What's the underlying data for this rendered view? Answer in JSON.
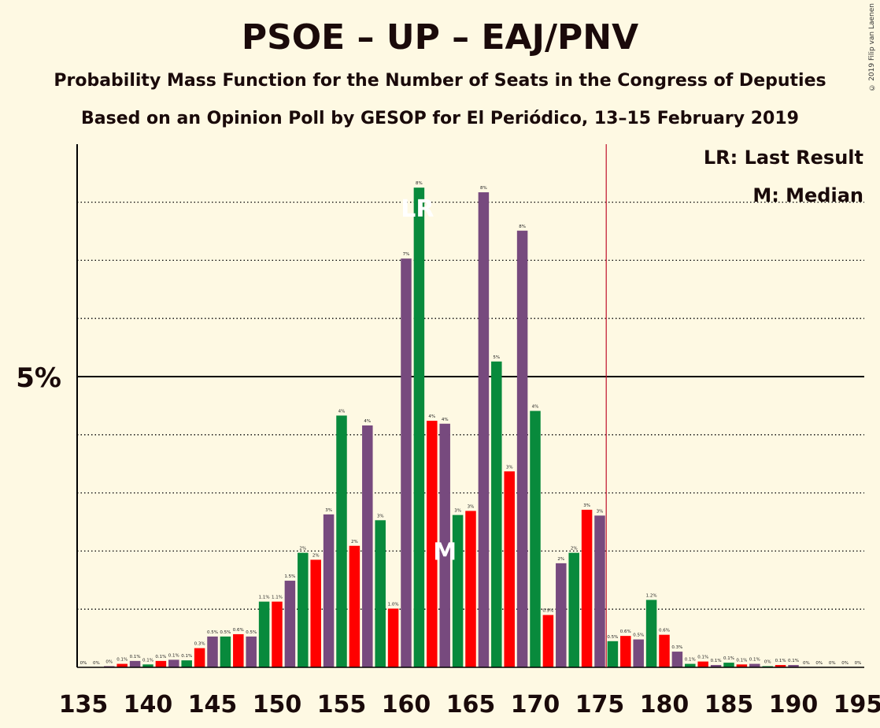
{
  "title": "PSOE – UP – EAJ/PNV",
  "subtitle": "Probability Mass Function for the Number of Seats in the Congress of Deputies",
  "subtitle2": "Based on an Opinion Poll by GESOP for El Periódico, 13–15 February 2019",
  "copyright": "© 2019 Filip van Laenen",
  "chart_data": {
    "type": "bar",
    "y_tick_label": "5%",
    "y_tick_value": 5,
    "ylim": [
      0,
      9
    ],
    "x_ticks": [
      135,
      140,
      145,
      150,
      155,
      160,
      165,
      170,
      175,
      180,
      185,
      190,
      195
    ],
    "majority_line": 176,
    "last_result": 161,
    "median": 163,
    "legend": {
      "lr": "LR: Last Result",
      "m": "M: Median"
    },
    "marker_labels": {
      "lr": "LR",
      "m": "M"
    },
    "colors": {
      "purple": "#774A7E",
      "green": "#088A3C",
      "red": "#FF0000",
      "majority_line": "#C0102A"
    },
    "bars": [
      {
        "seat": 135,
        "value": 0.0,
        "label": "0%",
        "color": "purple"
      },
      {
        "seat": 136,
        "value": 0.0,
        "label": "0%",
        "color": "green"
      },
      {
        "seat": 137,
        "value": 0.02,
        "label": "0%",
        "color": "purple"
      },
      {
        "seat": 138,
        "value": 0.06,
        "label": "0.1%",
        "color": "red"
      },
      {
        "seat": 139,
        "value": 0.11,
        "label": "0.1%",
        "color": "purple"
      },
      {
        "seat": 140,
        "value": 0.05,
        "label": "0.1%",
        "color": "green"
      },
      {
        "seat": 141,
        "value": 0.11,
        "label": "0.1%",
        "color": "red"
      },
      {
        "seat": 142,
        "value": 0.13,
        "label": "0.1%",
        "color": "purple"
      },
      {
        "seat": 143,
        "value": 0.12,
        "label": "0.1%",
        "color": "green"
      },
      {
        "seat": 144,
        "value": 0.33,
        "label": "0.3%",
        "color": "red"
      },
      {
        "seat": 145,
        "value": 0.53,
        "label": "0.5%",
        "color": "purple"
      },
      {
        "seat": 146,
        "value": 0.53,
        "label": "0.5%",
        "color": "green"
      },
      {
        "seat": 147,
        "value": 0.57,
        "label": "0.6%",
        "color": "red"
      },
      {
        "seat": 148,
        "value": 0.53,
        "label": "0.5%",
        "color": "purple"
      },
      {
        "seat": 149,
        "value": 1.13,
        "label": "1.1%",
        "color": "green"
      },
      {
        "seat": 150,
        "value": 1.13,
        "label": "1.1%",
        "color": "red"
      },
      {
        "seat": 151,
        "value": 1.49,
        "label": "1.5%",
        "color": "purple"
      },
      {
        "seat": 152,
        "value": 1.97,
        "label": "2%",
        "color": "green"
      },
      {
        "seat": 153,
        "value": 1.85,
        "label": "2%",
        "color": "red"
      },
      {
        "seat": 154,
        "value": 2.63,
        "label": "3%",
        "color": "purple"
      },
      {
        "seat": 155,
        "value": 4.33,
        "label": "4%",
        "color": "green"
      },
      {
        "seat": 156,
        "value": 2.09,
        "label": "2%",
        "color": "red"
      },
      {
        "seat": 157,
        "value": 4.16,
        "label": "4%",
        "color": "purple"
      },
      {
        "seat": 158,
        "value": 2.53,
        "label": "3%",
        "color": "green"
      },
      {
        "seat": 159,
        "value": 1.01,
        "label": "1.0%",
        "color": "red"
      },
      {
        "seat": 160,
        "value": 7.03,
        "label": "7%",
        "color": "purple"
      },
      {
        "seat": 161,
        "value": 8.25,
        "label": "8%",
        "color": "green"
      },
      {
        "seat": 162,
        "value": 4.24,
        "label": "4%",
        "color": "red"
      },
      {
        "seat": 163,
        "value": 4.19,
        "label": "4%",
        "color": "purple"
      },
      {
        "seat": 164,
        "value": 2.62,
        "label": "3%",
        "color": "green"
      },
      {
        "seat": 165,
        "value": 2.69,
        "label": "3%",
        "color": "red"
      },
      {
        "seat": 166,
        "value": 8.17,
        "label": "8%",
        "color": "purple"
      },
      {
        "seat": 167,
        "value": 5.26,
        "label": "5%",
        "color": "green"
      },
      {
        "seat": 168,
        "value": 3.37,
        "label": "3%",
        "color": "red"
      },
      {
        "seat": 169,
        "value": 7.51,
        "label": "8%",
        "color": "purple"
      },
      {
        "seat": 170,
        "value": 4.41,
        "label": "4%",
        "color": "green"
      },
      {
        "seat": 171,
        "value": 0.9,
        "label": "0.9%",
        "color": "red"
      },
      {
        "seat": 172,
        "value": 1.79,
        "label": "2%",
        "color": "purple"
      },
      {
        "seat": 173,
        "value": 1.97,
        "label": "2%",
        "color": "green"
      },
      {
        "seat": 174,
        "value": 2.71,
        "label": "3%",
        "color": "red"
      },
      {
        "seat": 175,
        "value": 2.61,
        "label": "3%",
        "color": "purple"
      },
      {
        "seat": 176,
        "value": 0.45,
        "label": "0.5%",
        "color": "green"
      },
      {
        "seat": 177,
        "value": 0.54,
        "label": "0.6%",
        "color": "red"
      },
      {
        "seat": 178,
        "value": 0.48,
        "label": "0.5%",
        "color": "purple"
      },
      {
        "seat": 179,
        "value": 1.16,
        "label": "1.2%",
        "color": "green"
      },
      {
        "seat": 180,
        "value": 0.56,
        "label": "0.6%",
        "color": "red"
      },
      {
        "seat": 181,
        "value": 0.27,
        "label": "0.3%",
        "color": "purple"
      },
      {
        "seat": 182,
        "value": 0.06,
        "label": "0.1%",
        "color": "green"
      },
      {
        "seat": 183,
        "value": 0.1,
        "label": "0.1%",
        "color": "red"
      },
      {
        "seat": 184,
        "value": 0.04,
        "label": "0.1%",
        "color": "purple"
      },
      {
        "seat": 185,
        "value": 0.08,
        "label": "0.1%",
        "color": "green"
      },
      {
        "seat": 186,
        "value": 0.05,
        "label": "0.1%",
        "color": "red"
      },
      {
        "seat": 187,
        "value": 0.06,
        "label": "0.1%",
        "color": "purple"
      },
      {
        "seat": 188,
        "value": 0.02,
        "label": "0%",
        "color": "green"
      },
      {
        "seat": 189,
        "value": 0.04,
        "label": "0.1%",
        "color": "red"
      },
      {
        "seat": 190,
        "value": 0.04,
        "label": "0.1%",
        "color": "purple"
      },
      {
        "seat": 191,
        "value": 0.0,
        "label": "0%",
        "color": "green"
      },
      {
        "seat": 192,
        "value": 0.0,
        "label": "0%",
        "color": "red"
      },
      {
        "seat": 193,
        "value": 0.0,
        "label": "0%",
        "color": "purple"
      },
      {
        "seat": 194,
        "value": 0.0,
        "label": "0%",
        "color": "green"
      },
      {
        "seat": 195,
        "value": 0.0,
        "label": "0%",
        "color": "red"
      }
    ]
  }
}
